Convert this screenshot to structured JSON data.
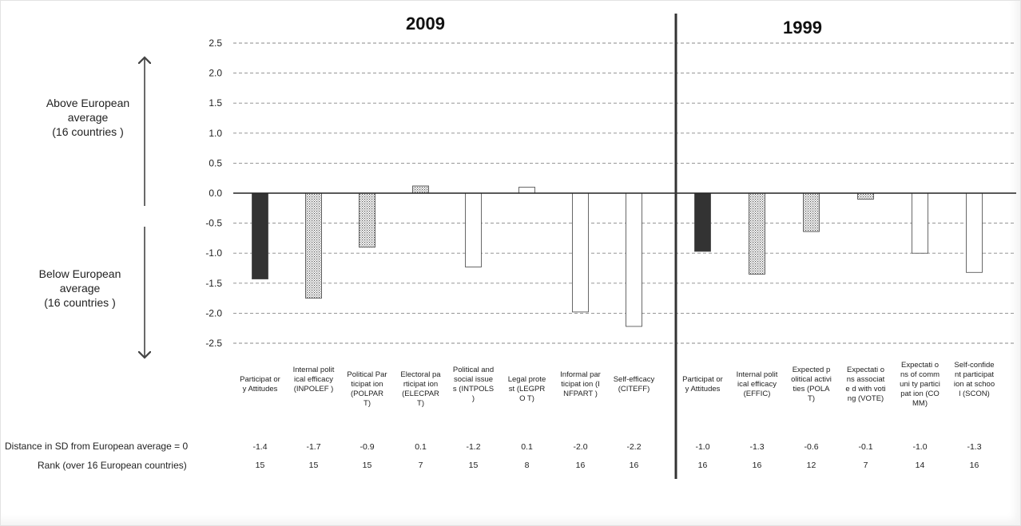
{
  "chart_data": {
    "type": "bar",
    "ylim": [
      -2.5,
      2.5
    ],
    "yticks": [
      2.5,
      2.0,
      1.5,
      1.0,
      0.5,
      0.0,
      -0.5,
      -1.0,
      -1.5,
      -2.0,
      -2.5
    ],
    "ytick_labels": [
      "2.5",
      "2.0",
      "1.5",
      "1.0",
      "0.5",
      "0.0",
      "-0.5",
      "-1.0",
      "-1.5",
      "-2.0",
      "-2.5"
    ],
    "grid": true,
    "panels": [
      {
        "title": "2009",
        "categories": [
          "Participat ory Attitudes",
          "Internal political efficacy (INPOLEF )",
          "Political Participat ion (POLPAR T)",
          "Electoral participat ion (ELECPAR T)",
          "Political and social issues (INTPOLS )",
          "Legal protest (LEGPRO T)",
          "Informal participat ion (INFPART )",
          "Self-efficacy (CITEFF)"
        ],
        "values": [
          -1.43,
          -1.75,
          -0.9,
          0.12,
          -1.23,
          0.1,
          -1.98,
          -2.22
        ],
        "fills": [
          "dark",
          "dotted",
          "dotted",
          "dotted",
          "white",
          "white",
          "white",
          "white"
        ],
        "distance_labels": [
          "-1.4",
          "-1.7",
          "-0.9",
          "0.1",
          "-1.2",
          "0.1",
          "-2.0",
          "-2.2"
        ],
        "ranks": [
          "15",
          "15",
          "15",
          "7",
          "15",
          "8",
          "16",
          "16"
        ]
      },
      {
        "title": "1999",
        "categories": [
          "Participat ory Attitudes",
          "Internal political efficacy (EFFIC)",
          "Expected political activities (POLAT)",
          "Expectati ons associate d with voting (VOTE)",
          "Expectati ons of communi ty participat ion (COMM)",
          "Self-confident participat ion at school (SCON)"
        ],
        "values": [
          -0.97,
          -1.35,
          -0.64,
          -0.1,
          -1.0,
          -1.32
        ],
        "fills": [
          "dark",
          "dotted",
          "dotted",
          "dotted",
          "white",
          "white"
        ],
        "distance_labels": [
          "-1.0",
          "-1.3",
          "-0.6",
          "-0.1",
          "-1.0",
          "-1.3"
        ],
        "ranks": [
          "16",
          "16",
          "12",
          "7",
          "14",
          "16"
        ]
      }
    ]
  },
  "annotations": {
    "above": [
      "Above European",
      "average",
      "(16 countries )"
    ],
    "below": [
      "Below European",
      "average",
      "(16 countries )"
    ]
  },
  "rows": {
    "distance_title": "Distance in SD from European average = 0",
    "rank_title": "Rank (over 16 European countries)"
  },
  "colors": {
    "dark": "#333333",
    "grid": "#888888",
    "bar_stroke": "#444444"
  }
}
